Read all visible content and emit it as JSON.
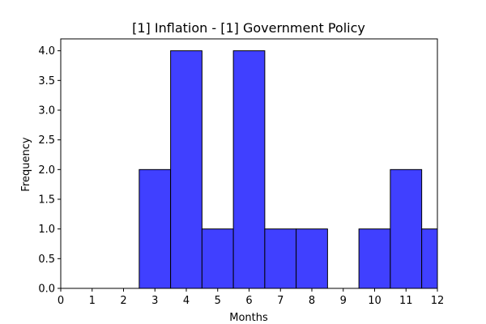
{
  "chart_data": {
    "type": "bar",
    "title": "[1] Inflation - [1] Government Policy",
    "xlabel": "Months",
    "ylabel": "Frequency",
    "xlim": [
      0,
      12
    ],
    "ylim": [
      0,
      4.2
    ],
    "bar_color": "#4040ff",
    "edge_color": "#000000",
    "grid": false,
    "x_ticks": [
      "0",
      "1",
      "2",
      "3",
      "4",
      "5",
      "6",
      "7",
      "8",
      "9",
      "10",
      "11",
      "12"
    ],
    "y_ticks": [
      "0.0",
      "0.5",
      "1.0",
      "1.5",
      "2.0",
      "2.5",
      "3.0",
      "3.5",
      "4.0"
    ],
    "bins": [
      {
        "x_start": 2.5,
        "x_end": 3.5,
        "value": 2
      },
      {
        "x_start": 3.5,
        "x_end": 4.5,
        "value": 4
      },
      {
        "x_start": 4.5,
        "x_end": 5.5,
        "value": 1
      },
      {
        "x_start": 5.5,
        "x_end": 6.5,
        "value": 4
      },
      {
        "x_start": 6.5,
        "x_end": 7.5,
        "value": 1
      },
      {
        "x_start": 7.5,
        "x_end": 8.5,
        "value": 1
      },
      {
        "x_start": 8.5,
        "x_end": 9.5,
        "value": 0
      },
      {
        "x_start": 9.5,
        "x_end": 10.5,
        "value": 1
      },
      {
        "x_start": 10.5,
        "x_end": 11.5,
        "value": 2
      },
      {
        "x_start": 11.5,
        "x_end": 12.5,
        "value": 1
      }
    ]
  }
}
